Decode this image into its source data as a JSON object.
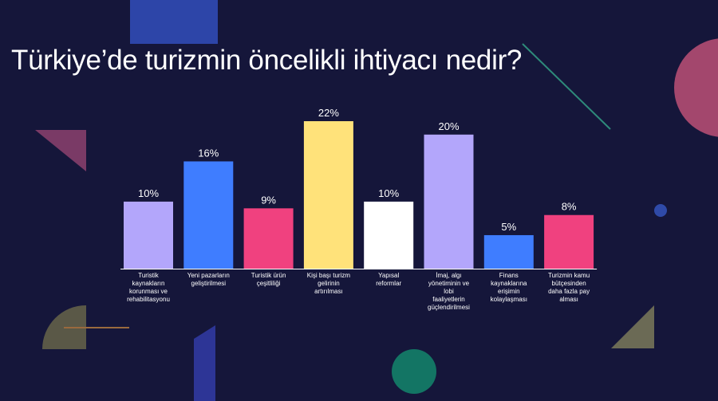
{
  "title": "Türkiye’de turizmin öncelikli ihtiyacı nedir?",
  "colors": {
    "background": "#15163a",
    "lavender": "#b3a6fb",
    "blue": "#3f7dff",
    "pink": "#f0417f",
    "yellow": "#ffe27a",
    "white": "#ffffff"
  },
  "chart_data": {
    "type": "bar",
    "title": "Türkiye’de turizmin öncelikli ihtiyacı nedir?",
    "xlabel": "",
    "ylabel": "",
    "ylim": [
      0,
      22
    ],
    "grid": false,
    "legend": "none",
    "value_suffix": "%",
    "categories": [
      [
        "Turistik",
        "kaynakların",
        "korunması ve",
        "rehabilitasyonu"
      ],
      [
        "Yeni pazarların",
        "geliştirilmesi"
      ],
      [
        "Turistik ürün",
        "çeşitliliği"
      ],
      [
        "Kişi başı turizm",
        "gelirinin",
        "artırılması"
      ],
      [
        "Yapısal",
        "reformlar"
      ],
      [
        "İmaj, algı",
        "yönetiminin ve",
        "lobi",
        "faaliyetlerin",
        "güçlendirilmesi"
      ],
      [
        "Finans",
        "kaynaklarına",
        "erişimin",
        "kolaylaşması"
      ],
      [
        "Turizmin kamu",
        "bütçesinden",
        "daha fazla pay",
        "alması"
      ]
    ],
    "values": [
      10,
      16,
      9,
      22,
      10,
      20,
      5,
      8
    ],
    "bar_colors": [
      "#b3a6fb",
      "#3f7dff",
      "#f0417f",
      "#ffe27a",
      "#ffffff",
      "#b3a6fb",
      "#3f7dff",
      "#f0417f"
    ]
  }
}
